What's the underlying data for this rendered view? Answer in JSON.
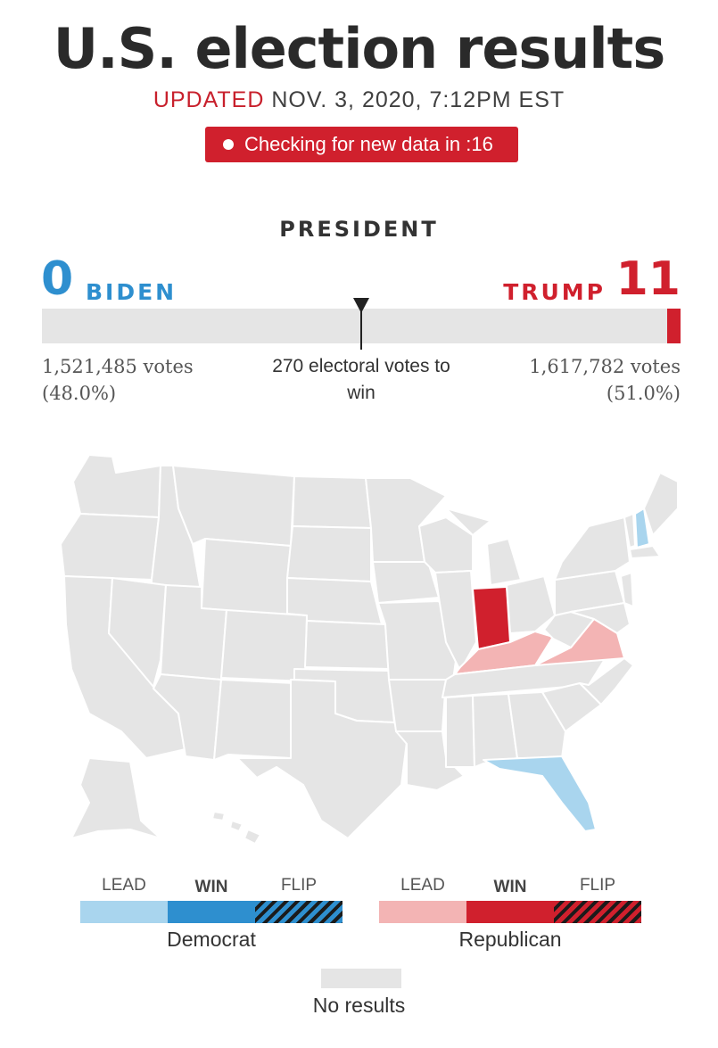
{
  "header": {
    "title": "U.S. election results",
    "updated_label": "UPDATED",
    "updated_time": "NOV. 3, 2020, 7:12PM EST",
    "checking_text": "Checking for new data in :16"
  },
  "race": {
    "title": "PRESIDENT",
    "threshold_text": "270 electoral votes to win",
    "threshold_votes": 270,
    "total_electoral_votes": 538,
    "democrat": {
      "name": "BIDEN",
      "electoral_votes": "0",
      "ev_count": 0,
      "popular_votes": "1,521,485 votes",
      "popular_pct": "(48.0%)",
      "color": "#2e8fcf"
    },
    "republican": {
      "name": "TRUMP",
      "electoral_votes": "11",
      "ev_count": 11,
      "popular_votes": "1,617,782 votes",
      "popular_pct": "(51.0%)",
      "color": "#d0202d"
    }
  },
  "map": {
    "states": [
      {
        "name": "Indiana",
        "status": "rep-win"
      },
      {
        "name": "Kentucky",
        "status": "rep-lead"
      },
      {
        "name": "Virginia",
        "status": "rep-lead"
      },
      {
        "name": "Florida",
        "status": "dem-lead"
      },
      {
        "name": "New Hampshire",
        "status": "dem-lead"
      }
    ],
    "colors": {
      "no-results": "#e5e5e5",
      "dem-lead": "#a9d5ee",
      "dem-win": "#2e8fcf",
      "rep-lead": "#f3b4b4",
      "rep-win": "#d0202d"
    }
  },
  "legend": {
    "democrat": {
      "party": "Democrat",
      "lead": "LEAD",
      "win": "WIN",
      "flip": "FLIP",
      "lead_color": "#a9d5ee",
      "win_color": "#2e8fcf"
    },
    "republican": {
      "party": "Republican",
      "lead": "LEAD",
      "win": "WIN",
      "flip": "FLIP",
      "lead_color": "#f3b4b4",
      "win_color": "#d0202d"
    },
    "no_results": "No results"
  }
}
